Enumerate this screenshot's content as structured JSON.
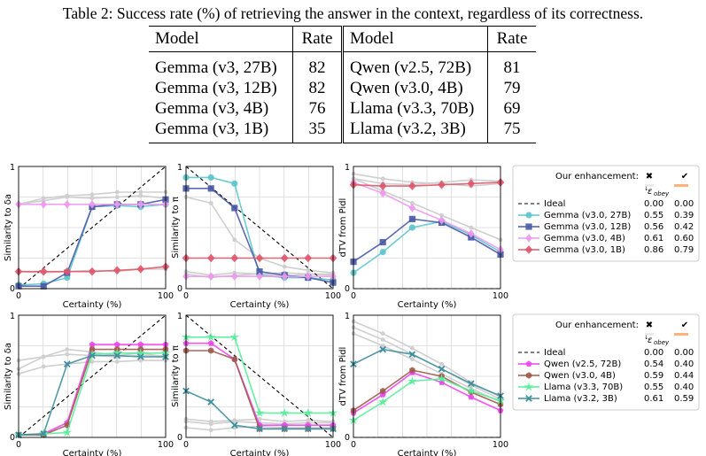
{
  "caption": "Table 2: Success rate (%) of retrieving the answer in the context, regardless of its correctness.",
  "table": {
    "headers": [
      "Model",
      "Rate",
      "Model",
      "Rate"
    ],
    "rows": [
      [
        "Gemma (v3, 27B)",
        "82",
        "Qwen (v2.5, 72B)",
        "81"
      ],
      [
        "Gemma (v3, 12B)",
        "82",
        "Qwen (v3.0, 4B)",
        "79"
      ],
      [
        "Gemma (v3, 4B)",
        "76",
        "Llama (v3.3, 70B)",
        "69"
      ],
      [
        "Gemma (v3, 1B)",
        "35",
        "Llama (v3.2, 3B)",
        "75"
      ]
    ]
  },
  "axes": {
    "xlabel": "Certainty (%)",
    "xticks": [
      "0",
      "100"
    ],
    "ylabels": [
      "Similarity to δa",
      "Similarity to π",
      "dTV from Pidl"
    ],
    "ytick_labels": [
      "0",
      "1"
    ],
    "xlim": [
      0,
      100
    ],
    "ylim": [
      0,
      1
    ]
  },
  "legend": {
    "header": "Our enhancement:",
    "header_marks": [
      "✖",
      "✔"
    ],
    "eps_label": "ε",
    "eps_sub": "obey",
    "ideal": {
      "label": "Ideal",
      "v1": "0.00",
      "v2": "0.00",
      "color": "#000000"
    }
  },
  "gray_color": "#cfcfcf",
  "chart_data": [
    {
      "type": "line",
      "row": 0,
      "x": [
        0,
        17,
        33,
        50,
        67,
        83,
        100
      ],
      "series": [
        {
          "name": "Gemma (v3.0, 27B)",
          "marker": "circle",
          "color": "#5cc6cc",
          "eps": [
            "0.55",
            "0.39"
          ]
        },
        {
          "name": "Gemma (v3.0, 12B)",
          "marker": "square",
          "color": "#4a5aa8",
          "eps": [
            "0.56",
            "0.42"
          ]
        },
        {
          "name": "Gemma (v3.0, 4B)",
          "marker": "diamond-thin",
          "color": "#ee99ee",
          "eps": [
            "0.61",
            "0.60"
          ]
        },
        {
          "name": "Gemma (v3.0, 1B)",
          "marker": "diamond",
          "color": "#e0566a",
          "eps": [
            "0.86",
            "0.79"
          ]
        }
      ],
      "panels": [
        {
          "ideal": [
            [
              0,
              0
            ],
            [
              100,
              1
            ]
          ],
          "values": [
            [
              0.03,
              0.04,
              0.09,
              0.67,
              0.68,
              0.67,
              0.69
            ],
            [
              0.02,
              0.02,
              0.13,
              0.67,
              0.69,
              0.69,
              0.73
            ],
            [
              0.69,
              0.69,
              0.69,
              0.69,
              0.69,
              0.69,
              0.69
            ],
            [
              0.14,
              0.14,
              0.14,
              0.14,
              0.15,
              0.16,
              0.18
            ]
          ],
          "gray": [
            [
              0.69,
              0.72,
              0.75,
              0.74,
              0.75,
              0.76,
              0.74
            ],
            [
              0.69,
              0.74,
              0.76,
              0.77,
              0.79,
              0.79,
              0.79
            ],
            [
              0.14,
              0.13,
              0.14,
              0.15,
              0.14,
              0.16,
              0.16
            ]
          ]
        },
        {
          "ideal": [
            [
              0,
              1
            ],
            [
              100,
              0
            ]
          ],
          "values": [
            [
              0.91,
              0.91,
              0.86,
              0.11,
              0.09,
              0.09,
              0.07
            ],
            [
              0.82,
              0.82,
              0.66,
              0.14,
              0.11,
              0.09,
              0.05
            ],
            [
              0.1,
              0.1,
              0.1,
              0.1,
              0.1,
              0.1,
              0.1
            ],
            [
              0.25,
              0.25,
              0.25,
              0.25,
              0.25,
              0.25,
              0.25
            ]
          ],
          "gray": [
            [
              0.12,
              0.09,
              0.11,
              0.12,
              0.13,
              0.12,
              0.11
            ],
            [
              0.14,
              0.11,
              0.13,
              0.12,
              0.1,
              0.12,
              0.12
            ],
            [
              0.75,
              0.7,
              0.4,
              0.25,
              0.18,
              0.15,
              0.13
            ]
          ]
        },
        {
          "ideal": [
            [
              0,
              0
            ],
            [
              100,
              0
            ]
          ],
          "values": [
            [
              0.13,
              0.3,
              0.5,
              0.55,
              0.44,
              0.3
            ],
            [
              0.22,
              0.38,
              0.57,
              0.54,
              0.42,
              0.28
            ],
            [
              0.87,
              0.78,
              0.66,
              0.56,
              0.45,
              0.32
            ],
            [
              0.85,
              0.84,
              0.84,
              0.85,
              0.86,
              0.87
            ]
          ],
          "x": [
            0,
            20,
            40,
            60,
            80,
            100
          ],
          "gray": [
            [
              0.94,
              0.9,
              0.87,
              0.86,
              0.84,
              0.86
            ],
            [
              0.9,
              0.86,
              0.85,
              0.87,
              0.89,
              0.88
            ],
            [
              0.9,
              0.8,
              0.7,
              0.6,
              0.5,
              0.4
            ]
          ]
        }
      ]
    },
    {
      "type": "line",
      "row": 1,
      "x": [
        0,
        17,
        33,
        50,
        67,
        83,
        100
      ],
      "series": [
        {
          "name": "Qwen (v2.5, 72B)",
          "marker": "pentagon",
          "color": "#ee44ee",
          "eps": [
            "0.54",
            "0.40"
          ]
        },
        {
          "name": "Qwen (v3.0, 4B)",
          "marker": "hexagon",
          "color": "#a05a4c",
          "eps": [
            "0.59",
            "0.44"
          ]
        },
        {
          "name": "Llama (v3.3, 70B)",
          "marker": "star",
          "color": "#55ee99",
          "eps": [
            "0.55",
            "0.40"
          ]
        },
        {
          "name": "Llama (v3.2, 3B)",
          "marker": "x",
          "color": "#3f8f9e",
          "eps": [
            "0.61",
            "0.59"
          ]
        }
      ],
      "panels": [
        {
          "ideal": [
            [
              0,
              0
            ],
            [
              100,
              1
            ]
          ],
          "values": [
            [
              0.02,
              0.03,
              0.12,
              0.76,
              0.76,
              0.76,
              0.76
            ],
            [
              0.02,
              0.02,
              0.1,
              0.72,
              0.72,
              0.72,
              0.72
            ],
            [
              0.02,
              0.03,
              0.04,
              0.68,
              0.69,
              0.69,
              0.69
            ],
            [
              0.02,
              0.03,
              0.6,
              0.67,
              0.67,
              0.66,
              0.66
            ]
          ],
          "gray": [
            [
              0.63,
              0.66,
              0.68,
              0.67,
              0.66,
              0.67,
              0.67
            ],
            [
              0.56,
              0.66,
              0.72,
              0.7,
              0.67,
              0.69,
              0.66
            ],
            [
              0.52,
              0.58,
              0.6,
              0.62,
              0.62,
              0.63,
              0.63
            ]
          ]
        },
        {
          "ideal": [
            [
              0,
              1
            ],
            [
              100,
              0
            ]
          ],
          "values": [
            [
              0.77,
              0.77,
              0.64,
              0.1,
              0.1,
              0.1,
              0.1
            ],
            [
              0.71,
              0.71,
              0.64,
              0.07,
              0.07,
              0.07,
              0.07
            ],
            [
              0.82,
              0.82,
              0.82,
              0.2,
              0.2,
              0.2,
              0.2
            ],
            [
              0.38,
              0.29,
              0.1,
              0.07,
              0.07,
              0.07,
              0.07
            ]
          ],
          "gray": [
            [
              0.13,
              0.11,
              0.13,
              0.12,
              0.11,
              0.12,
              0.12
            ],
            [
              0.15,
              0.13,
              0.14,
              0.15,
              0.13,
              0.14,
              0.13
            ],
            [
              0.08,
              0.06,
              0.08,
              0.09,
              0.08,
              0.08,
              0.08
            ]
          ]
        },
        {
          "ideal": [
            [
              0,
              0
            ],
            [
              100,
              0
            ]
          ],
          "values": [
            [
              0.2,
              0.35,
              0.53,
              0.45,
              0.33,
              0.22
            ],
            [
              0.22,
              0.38,
              0.55,
              0.5,
              0.37,
              0.27
            ],
            [
              0.14,
              0.29,
              0.46,
              0.48,
              0.38,
              0.3
            ],
            [
              0.6,
              0.72,
              0.68,
              0.56,
              0.44,
              0.34
            ]
          ],
          "x": [
            0,
            20,
            40,
            60,
            80,
            100
          ],
          "gray": [
            [
              0.95,
              0.85,
              0.73,
              0.6,
              0.45,
              0.33
            ],
            [
              0.9,
              0.8,
              0.68,
              0.56,
              0.43,
              0.31
            ],
            [
              0.85,
              0.75,
              0.64,
              0.52,
              0.4,
              0.29
            ]
          ]
        }
      ]
    }
  ]
}
